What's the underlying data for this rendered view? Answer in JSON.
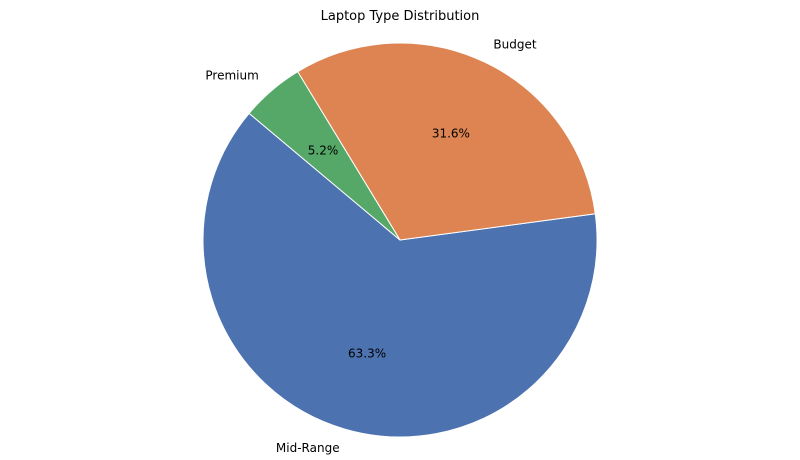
{
  "chart_data": {
    "type": "pie",
    "title": "Laptop Type Distribution",
    "labels": [
      "Mid-Range",
      "Budget",
      "Premium"
    ],
    "values": [
      63.3,
      31.6,
      5.2
    ],
    "pct_labels": [
      "63.3%",
      "31.6%",
      "5.2%"
    ],
    "colors": [
      "#4c72b0",
      "#dd8452",
      "#55a868"
    ],
    "edge_color": "#ffffff",
    "start_angle": 140,
    "counterclock": true,
    "center": [
      400,
      240
    ],
    "radius": 197,
    "pct_distance": 0.6,
    "label_distance": 1.1,
    "legend_position": "none",
    "background": "#ffffff"
  }
}
